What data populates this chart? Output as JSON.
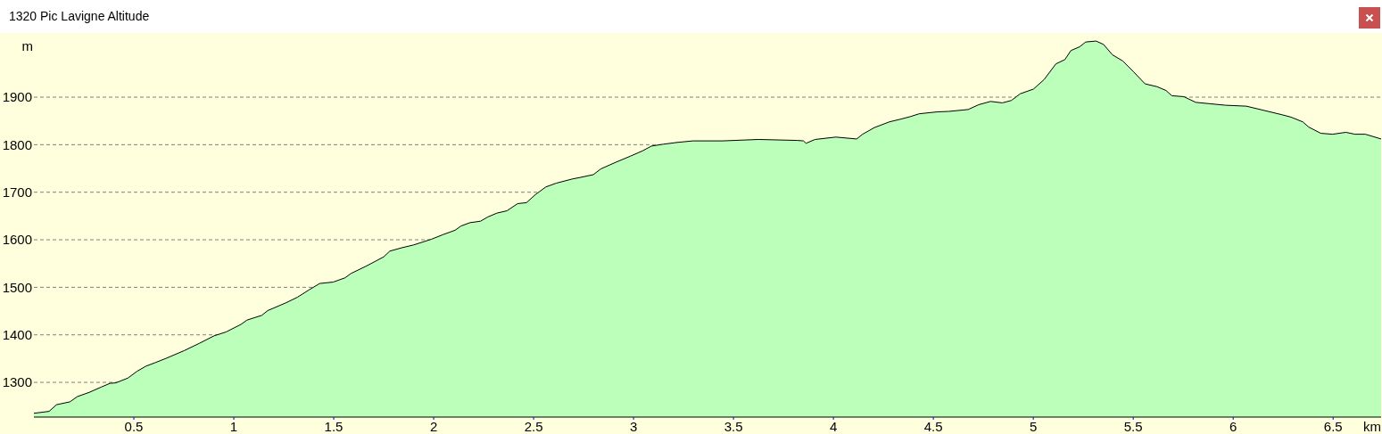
{
  "chart_data": {
    "type": "area",
    "title": "1320 Pic Lavigne Altitude",
    "xlabel": "km",
    "ylabel": "m",
    "xlim": [
      0,
      6.74
    ],
    "ylim": [
      1227,
      2035
    ],
    "xticks": [
      0.5,
      1,
      1.5,
      2,
      2.5,
      3,
      3.5,
      4,
      4.5,
      5,
      5.5,
      6,
      6.5
    ],
    "yticks": [
      1300,
      1400,
      1500,
      1600,
      1700,
      1800,
      1900
    ],
    "grid": "y",
    "x": [
      0,
      0.076,
      0.113,
      0.18,
      0.217,
      0.277,
      0.336,
      0.381,
      0.41,
      0.47,
      0.515,
      0.56,
      0.604,
      0.664,
      0.753,
      0.827,
      0.902,
      0.961,
      1.036,
      1.066,
      1.14,
      1.17,
      1.259,
      1.318,
      1.378,
      1.43,
      1.497,
      1.557,
      1.586,
      1.66,
      1.75,
      1.78,
      1.839,
      1.899,
      1.988,
      2.048,
      2.107,
      2.137,
      2.182,
      2.234,
      2.271,
      2.316,
      2.367,
      2.42,
      2.464,
      2.509,
      2.561,
      2.613,
      2.695,
      2.732,
      2.799,
      2.836,
      2.911,
      2.985,
      3.045,
      3.089,
      3.149,
      3.223,
      3.298,
      3.446,
      3.625,
      3.818,
      3.85,
      3.863,
      3.908,
      4.012,
      4.116,
      4.146,
      4.205,
      4.28,
      4.339,
      4.384,
      4.429,
      4.518,
      4.577,
      4.674,
      4.726,
      4.786,
      4.845,
      4.89,
      4.934,
      5.001,
      5.054,
      5.113,
      5.158,
      5.188,
      5.232,
      5.262,
      5.314,
      5.351,
      5.396,
      5.448,
      5.5,
      5.559,
      5.619,
      5.664,
      5.693,
      5.753,
      5.813,
      5.887,
      5.961,
      6.066,
      6.155,
      6.244,
      6.289,
      6.348,
      6.378,
      6.438,
      6.497,
      6.564,
      6.609,
      6.661,
      6.74
    ],
    "series": [
      {
        "color": "#bbffbb",
        "values": [
          1235,
          1239,
          1253,
          1259,
          1270,
          1279,
          1290,
          1298,
          1299,
          1309,
          1323,
          1334,
          1341,
          1351,
          1367,
          1382,
          1398,
          1406,
          1422,
          1431,
          1441,
          1451,
          1467,
          1479,
          1495,
          1508,
          1511,
          1520,
          1529,
          1544,
          1564,
          1576,
          1583,
          1589,
          1601,
          1611,
          1620,
          1629,
          1636,
          1639,
          1648,
          1656,
          1661,
          1676,
          1678,
          1695,
          1711,
          1719,
          1728,
          1731,
          1737,
          1749,
          1763,
          1776,
          1787,
          1797,
          1801,
          1805,
          1808,
          1808,
          1811,
          1809,
          1808,
          1803,
          1811,
          1816,
          1812,
          1822,
          1836,
          1848,
          1854,
          1859,
          1865,
          1869,
          1870,
          1874,
          1884,
          1891,
          1888,
          1893,
          1907,
          1917,
          1937,
          1970,
          1979,
          1998,
          2006,
          2016,
          2018,
          2011,
          1989,
          1976,
          1954,
          1928,
          1922,
          1914,
          1903,
          1901,
          1889,
          1886,
          1883,
          1881,
          1872,
          1863,
          1858,
          1848,
          1837,
          1824,
          1822,
          1826,
          1822,
          1822,
          1812
        ]
      }
    ]
  }
}
